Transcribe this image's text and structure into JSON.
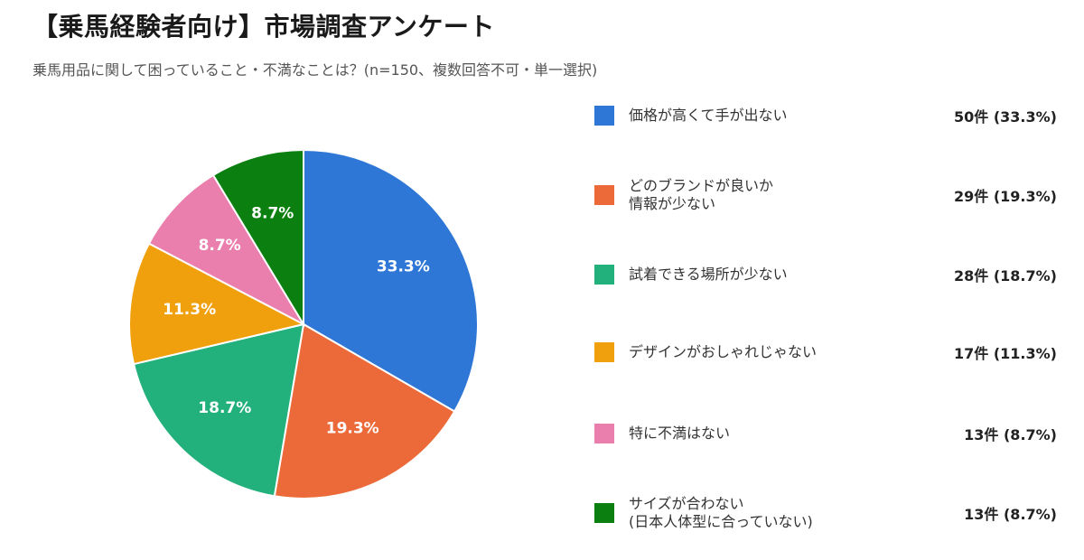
{
  "header": {
    "title": "【乗馬経験者向け】市場調査アンケート",
    "subtitle": "乗馬用品に関して困っていること・不満なことは？(n=150、複数回答不可・単一選択)"
  },
  "chart_data": {
    "type": "pie",
    "categories": [
      "価格が高くて手が出ない",
      "どのブランドが良いか\n情報が少ない",
      "試着できる場所が少ない",
      "デザインがおしゃれじゃない",
      "特に不満はない",
      "サイズが合わない\n(日本人体型に合っていない)"
    ],
    "counts": [
      50,
      29,
      28,
      17,
      13,
      13
    ],
    "percents": [
      33.3,
      19.3,
      18.7,
      11.3,
      8.7,
      8.7
    ],
    "slice_labels": [
      "33.3%",
      "19.3%",
      "18.7%",
      "11.3%",
      "8.7%",
      "8.7%"
    ],
    "value_labels": [
      "50件 (33.3%)",
      "29件 (19.3%)",
      "28件 (18.7%)",
      "17件 (11.3%)",
      "13件 (8.7%)",
      "13件 (8.7%)"
    ],
    "colors": [
      "#2f77d6",
      "#ec6a39",
      "#22b07d",
      "#f0a00c",
      "#ea7fad",
      "#0b8010"
    ],
    "legend_position": "right"
  }
}
